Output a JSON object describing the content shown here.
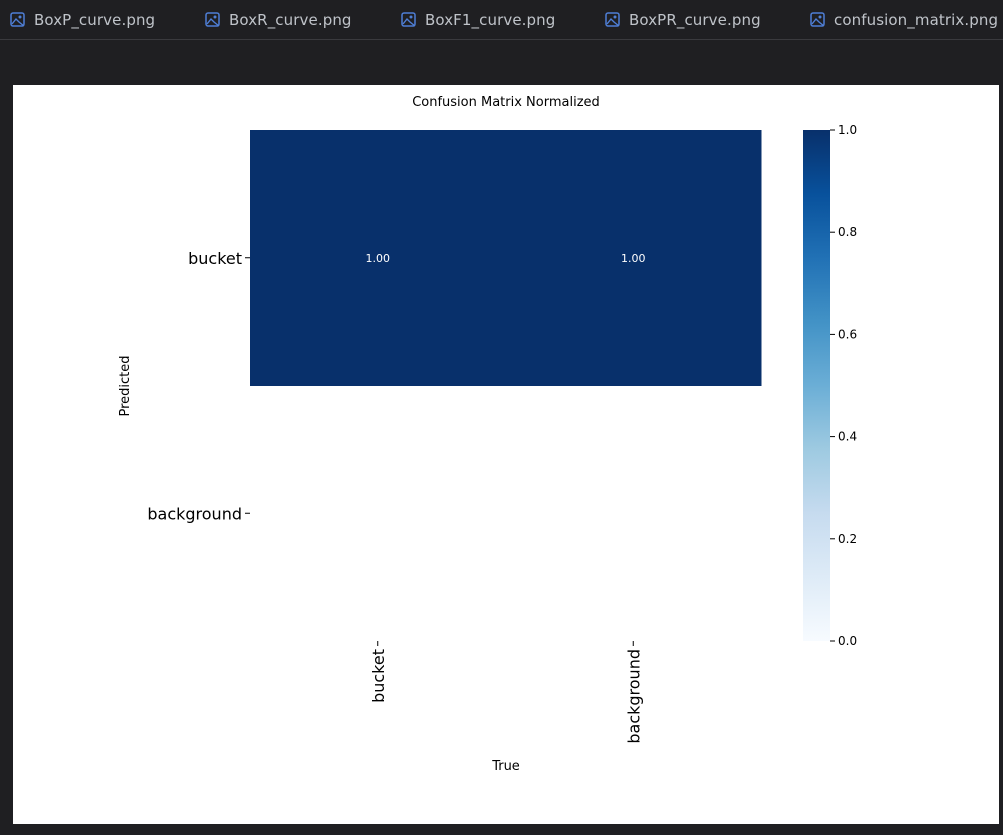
{
  "tabs": [
    {
      "label": "BoxP_curve.png",
      "icon": "image-file-icon"
    },
    {
      "label": "BoxR_curve.png",
      "icon": "image-file-icon"
    },
    {
      "label": "BoxF1_curve.png",
      "icon": "image-file-icon"
    },
    {
      "label": "BoxPR_curve.png",
      "icon": "image-file-icon"
    },
    {
      "label": "confusion_matrix.png",
      "icon": "image-file-icon"
    }
  ],
  "colors": {
    "background": "#1f1f22",
    "tab_text": "#bfc3c9",
    "icon_accent": "#4f7fd6",
    "cell_high": "#08306b",
    "cell_low": "#f7fbff"
  },
  "chart_data": {
    "type": "heatmap",
    "title": "Confusion Matrix Normalized",
    "xlabel": "True",
    "ylabel": "Predicted",
    "x_categories": [
      "bucket",
      "background"
    ],
    "y_categories": [
      "bucket",
      "background"
    ],
    "values": [
      [
        1.0,
        1.0
      ],
      [
        null,
        null
      ]
    ],
    "cell_labels": [
      [
        "1.00",
        "1.00"
      ],
      [
        "",
        ""
      ]
    ],
    "colormap": "Blues",
    "colorbar": {
      "range": [
        0.0,
        1.0
      ],
      "ticks": [
        0.0,
        0.2,
        0.4,
        0.6,
        0.8,
        1.0
      ],
      "tick_labels": [
        "0.0",
        "0.2",
        "0.4",
        "0.6",
        "0.8",
        "1.0"
      ]
    },
    "grid": false,
    "legend": "colorbar-right"
  }
}
